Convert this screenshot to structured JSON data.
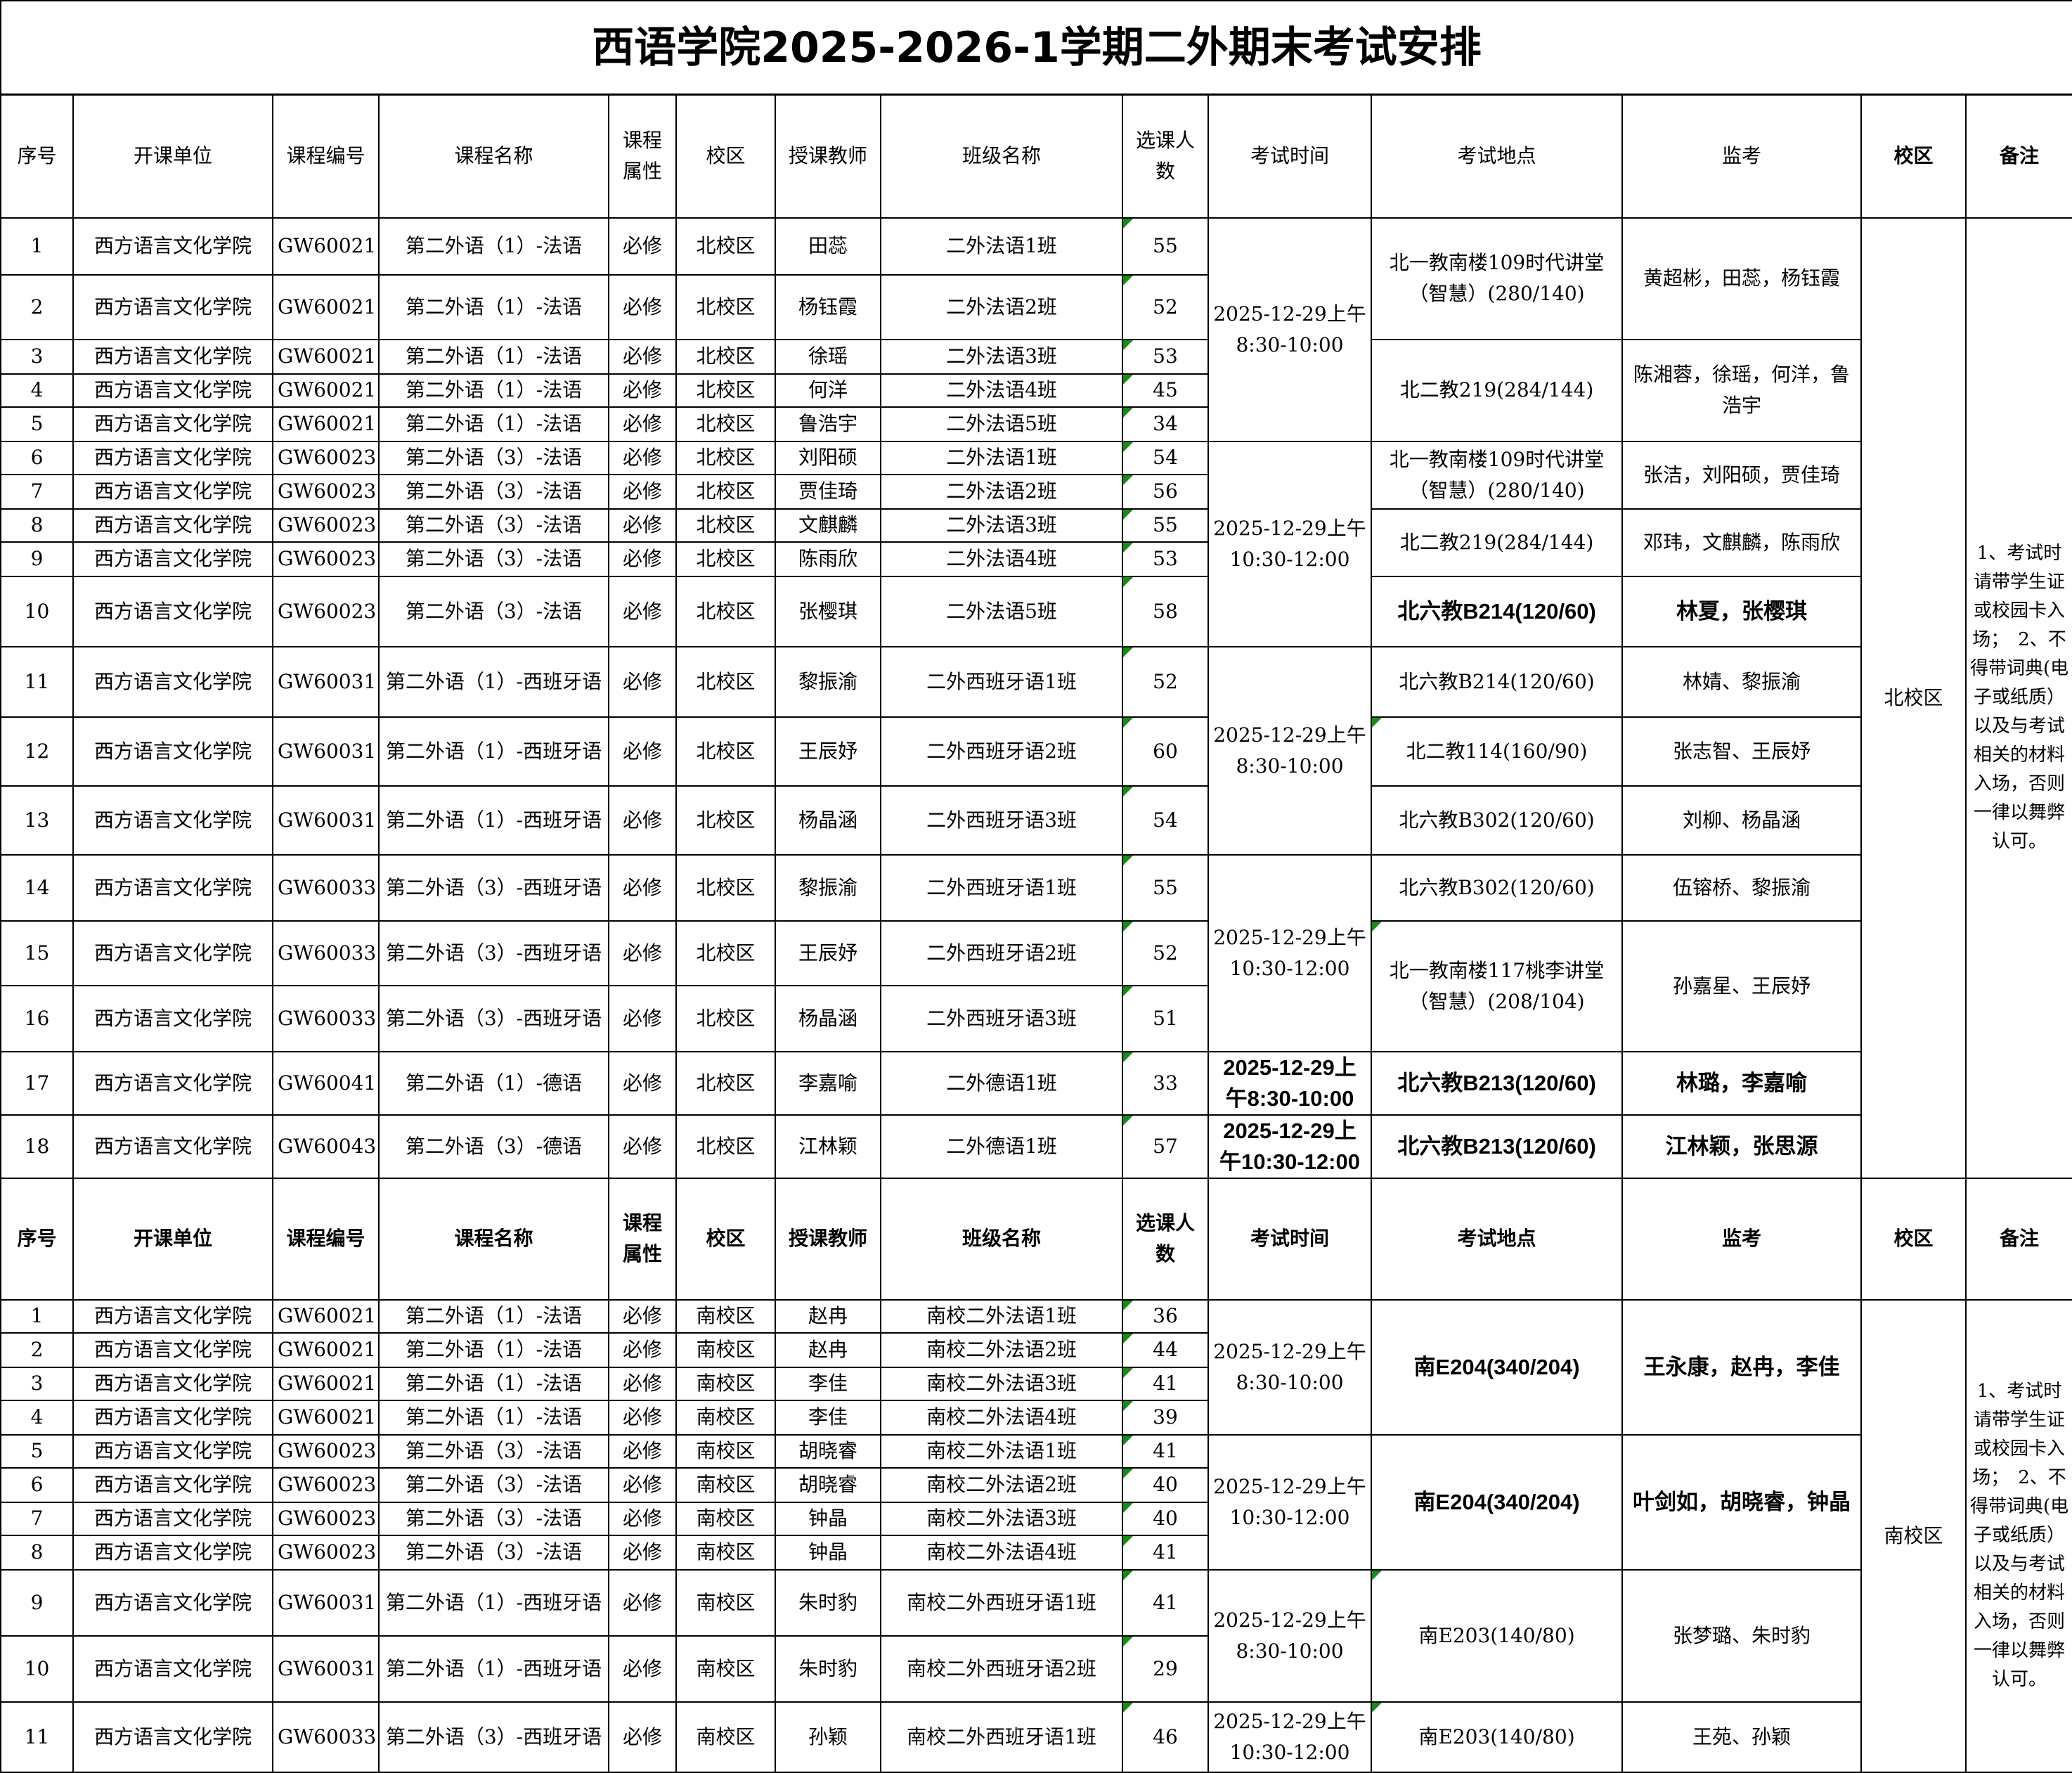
{
  "title": "西语学院2025-2026-1学期二外期末考试安排",
  "header": [
    "序号",
    "开课单位",
    "课程编号",
    "课程名称",
    "课程属性",
    "校区",
    "授课教师",
    "班级名称",
    "选课人数",
    "考试时间",
    "考试地点",
    "监考",
    "校区",
    "备注"
  ],
  "north": {
    "rows": [
      [
        "1",
        "西方语言文化学院",
        "GW60021",
        "第二外语（1）-法语",
        "必修",
        "北校区",
        "田蕊",
        "二外法语1班",
        "55"
      ],
      [
        "2",
        "西方语言文化学院",
        "GW60021",
        "第二外语（1）-法语",
        "必修",
        "北校区",
        "杨钰霞",
        "二外法语2班",
        "52"
      ],
      [
        "3",
        "西方语言文化学院",
        "GW60021",
        "第二外语（1）-法语",
        "必修",
        "北校区",
        "徐瑶",
        "二外法语3班",
        "53"
      ],
      [
        "4",
        "西方语言文化学院",
        "GW60021",
        "第二外语（1）-法语",
        "必修",
        "北校区",
        "何洋",
        "二外法语4班",
        "45"
      ],
      [
        "5",
        "西方语言文化学院",
        "GW60021",
        "第二外语（1）-法语",
        "必修",
        "北校区",
        "鲁浩宇",
        "二外法语5班",
        "34"
      ],
      [
        "6",
        "西方语言文化学院",
        "GW60023",
        "第二外语（3）-法语",
        "必修",
        "北校区",
        "刘阳硕",
        "二外法语1班",
        "54"
      ],
      [
        "7",
        "西方语言文化学院",
        "GW60023",
        "第二外语（3）-法语",
        "必修",
        "北校区",
        "贾佳琦",
        "二外法语2班",
        "56"
      ],
      [
        "8",
        "西方语言文化学院",
        "GW60023",
        "第二外语（3）-法语",
        "必修",
        "北校区",
        "文麒麟",
        "二外法语3班",
        "55"
      ],
      [
        "9",
        "西方语言文化学院",
        "GW60023",
        "第二外语（3）-法语",
        "必修",
        "北校区",
        "陈雨欣",
        "二外法语4班",
        "53"
      ],
      [
        "10",
        "西方语言文化学院",
        "GW60023",
        "第二外语（3）-法语",
        "必修",
        "北校区",
        "张樱琪",
        "二外法语5班",
        "58"
      ],
      [
        "11",
        "西方语言文化学院",
        "GW60031",
        "第二外语（1）-西班牙语",
        "必修",
        "北校区",
        "黎振渝",
        "二外西班牙语1班",
        "52"
      ],
      [
        "12",
        "西方语言文化学院",
        "GW60031",
        "第二外语（1）-西班牙语",
        "必修",
        "北校区",
        "王辰妤",
        "二外西班牙语2班",
        "60"
      ],
      [
        "13",
        "西方语言文化学院",
        "GW60031",
        "第二外语（1）-西班牙语",
        "必修",
        "北校区",
        "杨晶涵",
        "二外西班牙语3班",
        "54"
      ],
      [
        "14",
        "西方语言文化学院",
        "GW60033",
        "第二外语（3）-西班牙语",
        "必修",
        "北校区",
        "黎振渝",
        "二外西班牙语1班",
        "55"
      ],
      [
        "15",
        "西方语言文化学院",
        "GW60033",
        "第二外语（3）-西班牙语",
        "必修",
        "北校区",
        "王辰妤",
        "二外西班牙语2班",
        "52"
      ],
      [
        "16",
        "西方语言文化学院",
        "GW60033",
        "第二外语（3）-西班牙语",
        "必修",
        "北校区",
        "杨晶涵",
        "二外西班牙语3班",
        "51"
      ],
      [
        "17",
        "西方语言文化学院",
        "GW60041",
        "第二外语（1）-德语",
        "必修",
        "北校区",
        "李嘉喻",
        "二外德语1班",
        "33"
      ],
      [
        "18",
        "西方语言文化学院",
        "GW60043",
        "第二外语（3）-德语",
        "必修",
        "北校区",
        "江林颖",
        "二外德语1班",
        "57"
      ]
    ],
    "times": [
      "2025-12-29上午\n8:30-10:00",
      "2025-12-29上午\n10:30-12:00",
      "2025-12-29上午\n8:30-10:00",
      "2025-12-29上午\n10:30-12:00",
      "2025-12-29上午8:30-10:00",
      "2025-12-29上午10:30-12:00"
    ],
    "locations": [
      "北一教南楼109时代讲堂（智慧）(280/140)",
      "北二教219(284/144)",
      "北一教南楼109时代讲堂（智慧）(280/140)",
      "北二教219(284/144)",
      "北六教B214(120/60)",
      "北六教B214(120/60)",
      "北二教114(160/90)",
      "北六教B302(120/60)",
      "北六教B302(120/60)",
      "北一教南楼117桃李讲堂（智慧）(208/104)",
      "北六教B213(120/60)",
      "北六教B213(120/60)"
    ],
    "proctors": [
      "黄超彬，田蕊，杨钰霞",
      "陈湘蓉，徐瑶，何洋，鲁浩宇",
      "张洁，刘阳硕，贾佳琦",
      "邓玮，文麒麟，陈雨欣",
      "林夏，张樱琪",
      "林婧、黎振渝",
      "张志智、王辰妤",
      "刘柳、杨晶涵",
      "伍镕桥、黎振渝",
      "孙嘉星、王辰妤",
      "林璐，李嘉喻",
      "江林颖，张思源"
    ],
    "campus": "北校区",
    "note": "1、考试时请带学生证或校园卡入场；　2、不得带词典(电子或纸质）以及与考试相关的材料入场，否则一律以舞弊认可。"
  },
  "south": {
    "rows": [
      [
        "1",
        "西方语言文化学院",
        "GW60021",
        "第二外语（1）-法语",
        "必修",
        "南校区",
        "赵冉",
        "南校二外法语1班",
        "36"
      ],
      [
        "2",
        "西方语言文化学院",
        "GW60021",
        "第二外语（1）-法语",
        "必修",
        "南校区",
        "赵冉",
        "南校二外法语2班",
        "44"
      ],
      [
        "3",
        "西方语言文化学院",
        "GW60021",
        "第二外语（1）-法语",
        "必修",
        "南校区",
        "李佳",
        "南校二外法语3班",
        "41"
      ],
      [
        "4",
        "西方语言文化学院",
        "GW60021",
        "第二外语（1）-法语",
        "必修",
        "南校区",
        "李佳",
        "南校二外法语4班",
        "39"
      ],
      [
        "5",
        "西方语言文化学院",
        "GW60023",
        "第二外语（3）-法语",
        "必修",
        "南校区",
        "胡晓睿",
        "南校二外法语1班",
        "41"
      ],
      [
        "6",
        "西方语言文化学院",
        "GW60023",
        "第二外语（3）-法语",
        "必修",
        "南校区",
        "胡晓睿",
        "南校二外法语2班",
        "40"
      ],
      [
        "7",
        "西方语言文化学院",
        "GW60023",
        "第二外语（3）-法语",
        "必修",
        "南校区",
        "钟晶",
        "南校二外法语3班",
        "40"
      ],
      [
        "8",
        "西方语言文化学院",
        "GW60023",
        "第二外语（3）-法语",
        "必修",
        "南校区",
        "钟晶",
        "南校二外法语4班",
        "41"
      ],
      [
        "9",
        "西方语言文化学院",
        "GW60031",
        "第二外语（1）-西班牙语",
        "必修",
        "南校区",
        "朱时豹",
        "南校二外西班牙语1班",
        "41"
      ],
      [
        "10",
        "西方语言文化学院",
        "GW60031",
        "第二外语（1）-西班牙语",
        "必修",
        "南校区",
        "朱时豹",
        "南校二外西班牙语2班",
        "29"
      ],
      [
        "11",
        "西方语言文化学院",
        "GW60033",
        "第二外语（3）-西班牙语",
        "必修",
        "南校区",
        "孙颖",
        "南校二外西班牙语1班",
        "46"
      ]
    ],
    "times": [
      "2025-12-29上午\n8:30-10:00",
      "2025-12-29上午\n10:30-12:00",
      "2025-12-29上午\n8:30-10:00",
      "2025-12-29上午\n10:30-12:00"
    ],
    "locations": [
      "南E204(340/204)",
      "南E204(340/204)",
      "南E203(140/80)",
      "南E203(140/80)"
    ],
    "proctors": [
      "王永康，赵冉，李佳",
      "叶剑如，胡晓睿，钟晶",
      "张梦璐、朱时豹",
      "王苑、孙颖"
    ],
    "campus": "南校区",
    "note": "1、考试时请带学生证或校园卡入场；　2、不得带词典(电子或纸质）以及与考试相关的材料入场，否则一律以舞弊认可。"
  },
  "colors": {
    "border": "#000000",
    "comment_marker": "#1a8a1a"
  }
}
